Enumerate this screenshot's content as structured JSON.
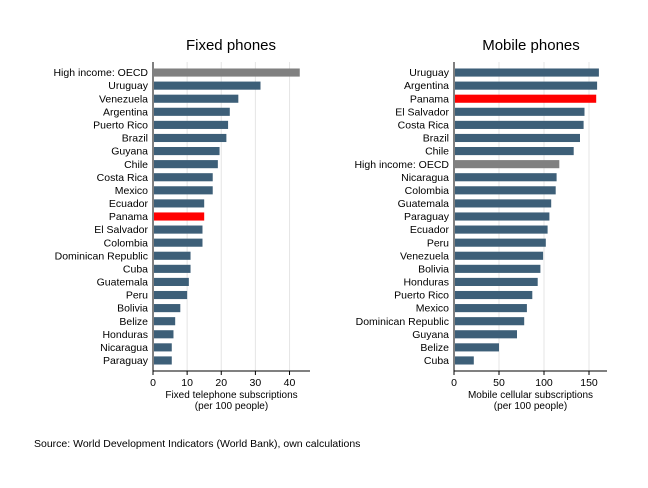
{
  "colors": {
    "bar_default": "#3d5f78",
    "bar_panama": "#ff0000",
    "bar_oecd": "#808080",
    "grid": "#e5e5e5",
    "axis": "#000000"
  },
  "source": "Source: World Development Indicators (World Bank), own calculations",
  "chart_data": [
    {
      "type": "bar",
      "orientation": "horizontal",
      "title": "Fixed phones",
      "xlabel": [
        "Fixed telephone subscriptions",
        "(per 100 people)"
      ],
      "xlim": [
        0,
        46
      ],
      "xticks": [
        0,
        10,
        20,
        30,
        40
      ],
      "grid": true,
      "highlights": {
        "Panama": "bar_panama",
        "High income: OECD": "bar_oecd"
      },
      "categories": [
        "High income: OECD",
        "Uruguay",
        "Venezuela",
        "Argentina",
        "Puerto Rico",
        "Brazil",
        "Guyana",
        "Chile",
        "Costa Rica",
        "Mexico",
        "Ecuador",
        "Panama",
        "El Salvador",
        "Colombia",
        "Dominican Republic",
        "Cuba",
        "Guatemala",
        "Peru",
        "Bolivia",
        "Belize",
        "Honduras",
        "Nicaragua",
        "Paraguay"
      ],
      "values": [
        43,
        31.5,
        25,
        22.5,
        22,
        21.5,
        19.5,
        19,
        17.5,
        17.5,
        15,
        15,
        14.5,
        14.5,
        11,
        11,
        10.5,
        10,
        8,
        6.5,
        6,
        5.5,
        5.5
      ]
    },
    {
      "type": "bar",
      "orientation": "horizontal",
      "title": "Mobile phones",
      "xlabel": [
        "Mobile cellular subscriptions",
        "(per 100 people)"
      ],
      "xlim": [
        0,
        170
      ],
      "xticks": [
        0,
        50,
        100,
        150
      ],
      "grid": true,
      "highlights": {
        "Panama": "bar_panama",
        "High income: OECD": "bar_oecd"
      },
      "categories": [
        "Uruguay",
        "Argentina",
        "Panama",
        "El Salvador",
        "Costa Rica",
        "Brazil",
        "Chile",
        "High income: OECD",
        "Nicaragua",
        "Colombia",
        "Guatemala",
        "Paraguay",
        "Ecuador",
        "Peru",
        "Venezuela",
        "Bolivia",
        "Honduras",
        "Puerto Rico",
        "Mexico",
        "Dominican Republic",
        "Guyana",
        "Belize",
        "Cuba"
      ],
      "values": [
        161,
        159,
        158,
        145,
        144,
        140,
        133,
        117,
        114,
        113,
        108,
        106,
        104,
        102,
        99,
        96,
        93,
        87,
        81,
        78,
        70,
        50,
        22
      ]
    }
  ]
}
